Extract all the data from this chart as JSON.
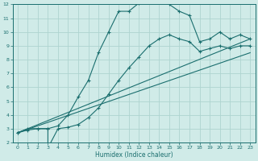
{
  "title": "",
  "xlabel": "Humidex (Indice chaleur)",
  "bg_color": "#d0ebe8",
  "grid_color": "#aed4d0",
  "line_color": "#1a6e6e",
  "xlim": [
    -0.5,
    23.5
  ],
  "ylim": [
    2,
    12
  ],
  "xticks": [
    0,
    1,
    2,
    3,
    4,
    5,
    6,
    7,
    8,
    9,
    10,
    11,
    12,
    13,
    14,
    15,
    16,
    17,
    18,
    19,
    20,
    21,
    22,
    23
  ],
  "yticks": [
    2,
    3,
    4,
    5,
    6,
    7,
    8,
    9,
    10,
    11,
    12
  ],
  "curve1_x": [
    0,
    1,
    2,
    3,
    4,
    5,
    6,
    7,
    8,
    9,
    10,
    11,
    12,
    13,
    14,
    15,
    16,
    17,
    18,
    19,
    20,
    21,
    22,
    23
  ],
  "curve1_y": [
    2.7,
    3.0,
    3.0,
    3.0,
    3.2,
    4.0,
    5.3,
    6.5,
    8.5,
    10.0,
    11.5,
    11.5,
    12.1,
    12.2,
    12.2,
    12.0,
    11.5,
    11.2,
    9.3,
    9.5,
    10.0,
    9.5,
    9.8,
    9.5
  ],
  "curve2_x": [
    0,
    1,
    2,
    3,
    3,
    4,
    5,
    6,
    7,
    8,
    9,
    10,
    11,
    12,
    13,
    14,
    15,
    16,
    17,
    18,
    19,
    20,
    21,
    22,
    23
  ],
  "curve2_y": [
    2.7,
    2.9,
    3.0,
    3.0,
    1.6,
    3.0,
    3.1,
    3.3,
    3.8,
    4.5,
    5.5,
    6.5,
    7.4,
    8.2,
    9.0,
    9.5,
    9.8,
    9.5,
    9.3,
    8.6,
    8.8,
    9.0,
    8.8,
    9.0,
    9.0
  ],
  "line1_x": [
    0,
    23
  ],
  "line1_y": [
    2.7,
    9.5
  ],
  "line2_x": [
    0,
    23
  ],
  "line2_y": [
    2.7,
    8.5
  ]
}
